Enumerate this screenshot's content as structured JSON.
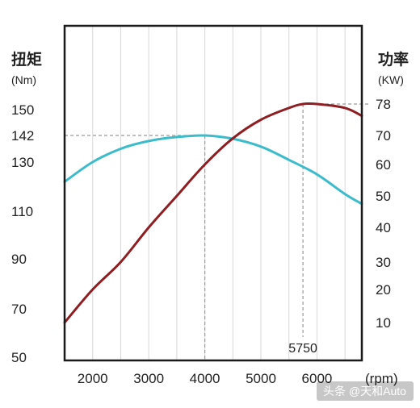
{
  "chart_data": {
    "type": "line",
    "title": "",
    "x_axis": {
      "range": [
        1500,
        6800
      ],
      "ticks": [
        2000,
        3000,
        4000,
        5000,
        6000
      ],
      "unit_label": "(rpm)",
      "grid": true
    },
    "y_left": {
      "title": "扭矩",
      "unit_label": "(Nm)",
      "range": [
        50,
        158
      ],
      "ticks": [
        50,
        70,
        90,
        110,
        130,
        142,
        150
      ]
    },
    "y_right": {
      "title": "功率",
      "unit_label": "(KW)",
      "scale": "nonlinear (ticks unevenly spaced)",
      "ticks": [
        10,
        20,
        30,
        40,
        50,
        60,
        70,
        78
      ]
    },
    "series": [
      {
        "name": "",
        "axis": "left",
        "color": "#3cbccb",
        "x": [
          1500,
          2000,
          2500,
          3000,
          3500,
          4000,
          4500,
          5000,
          5500,
          6000,
          6500,
          6800
        ],
        "y": [
          122,
          130,
          136,
          139.5,
          141.3,
          142,
          140.5,
          137,
          131,
          125,
          117,
          113
        ]
      },
      {
        "name": "",
        "axis": "right",
        "color": "#8e1e22",
        "x": [
          1500,
          2000,
          2500,
          3000,
          3500,
          4000,
          4500,
          5000,
          5500,
          5750,
          6000,
          6500,
          6800
        ],
        "y": [
          10,
          20,
          30,
          40,
          50,
          60,
          69,
          74,
          77,
          78,
          78,
          77,
          75
        ]
      }
    ],
    "annotations": [
      {
        "text": "142",
        "type": "reference-line",
        "x": 4000,
        "y_left": 142
      },
      {
        "text": "5750",
        "type": "reference-line",
        "x": 5750,
        "y_right": 78
      }
    ]
  },
  "watermark": "头条 @天和Auto",
  "colors": {
    "frame": "#1a1a1a",
    "grid": "#d8d8d8",
    "torque": "#3cbccb",
    "power": "#8e1e22",
    "reference": "#999999"
  }
}
